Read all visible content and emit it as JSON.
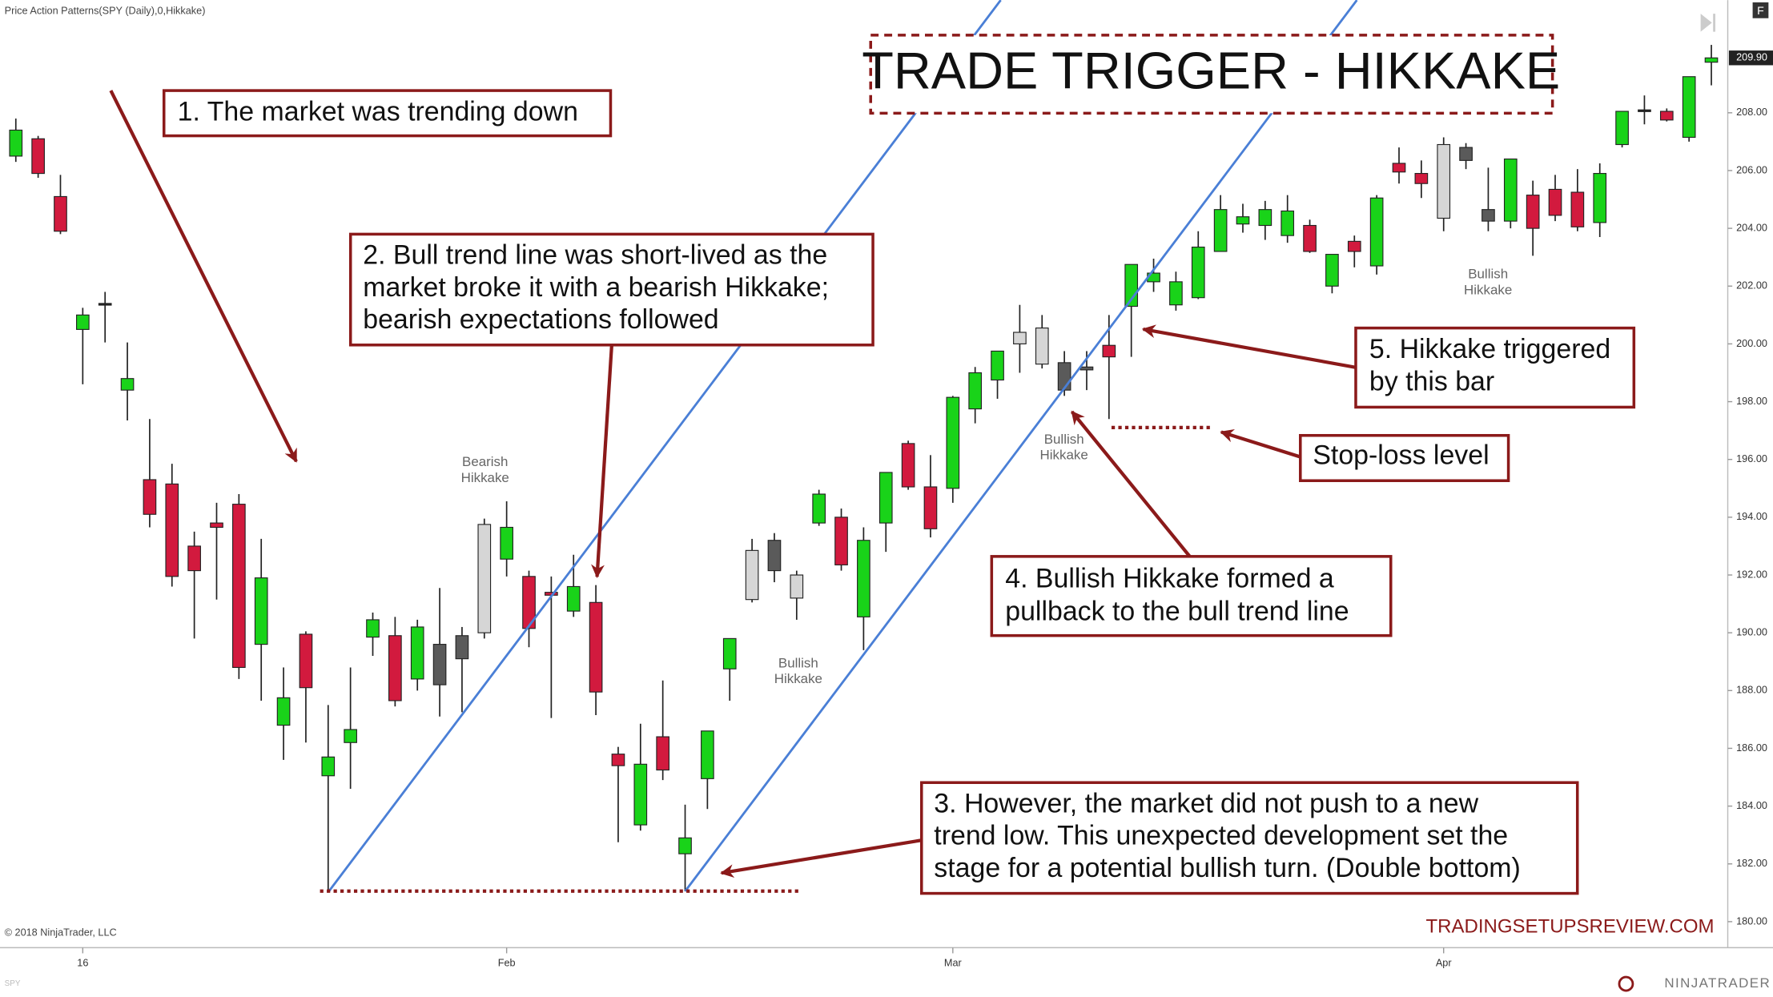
{
  "header": "Price Action Patterns(SPY (Daily),0,Hikkake)",
  "chart_data": {
    "type": "candlestick",
    "title": "TRADE TRIGGER - HIKKAKE",
    "categories": [
      null,
      null,
      null,
      "16",
      null,
      null,
      null,
      null,
      null,
      null,
      null,
      null,
      null,
      null,
      null,
      null,
      null,
      null,
      null,
      null,
      null,
      null,
      "Feb",
      null,
      null,
      null,
      null,
      null,
      null,
      null,
      null,
      null,
      null,
      null,
      null,
      null,
      null,
      null,
      null,
      null,
      null,
      null,
      "Mar",
      null,
      null,
      null,
      null,
      null,
      null,
      null,
      null,
      null,
      null,
      null,
      null,
      null,
      null,
      null,
      null,
      null,
      null,
      null,
      null,
      null,
      "Apr",
      null,
      null,
      null,
      null,
      null,
      null,
      null,
      null,
      null,
      null,
      null,
      null
    ],
    "open": [
      206.5,
      207.1,
      205.1,
      200.5,
      201.4,
      198.4,
      195.3,
      195.15,
      193.0,
      193.8,
      194.45,
      189.6,
      186.8,
      189.95,
      185.05,
      186.2,
      189.85,
      189.9,
      188.4,
      188.2,
      189.1,
      190.0,
      192.55,
      191.95,
      191.4,
      190.75,
      191.05,
      185.8,
      183.35,
      186.4,
      182.35,
      184.95,
      188.75,
      191.15,
      192.15,
      191.2,
      193.8,
      194.0,
      190.55,
      193.8,
      196.55,
      195.05,
      195.0,
      197.75,
      198.75,
      200.0,
      199.3,
      198.4,
      199.1,
      199.95,
      201.3,
      202.15,
      201.35,
      201.6,
      203.2,
      204.15,
      204.1,
      203.75,
      204.1,
      202.0,
      203.55,
      202.7,
      206.25,
      205.9,
      204.35,
      206.35,
      204.25,
      204.25,
      205.15,
      205.35,
      205.25,
      204.2,
      206.9,
      208.1,
      208.05,
      207.15,
      209.75
    ],
    "high": [
      207.8,
      207.2,
      205.85,
      201.25,
      201.8,
      200.05,
      197.4,
      195.85,
      193.5,
      194.5,
      194.8,
      193.25,
      188.8,
      190.05,
      187.5,
      188.8,
      190.7,
      190.55,
      190.45,
      191.55,
      190.2,
      193.95,
      194.55,
      192.15,
      191.95,
      192.7,
      191.65,
      186.05,
      186.85,
      188.35,
      184.05,
      186.6,
      189.8,
      193.25,
      193.45,
      192.15,
      194.95,
      194.3,
      193.65,
      195.55,
      196.65,
      196.15,
      198.2,
      199.2,
      199.75,
      201.35,
      201.0,
      199.75,
      199.75,
      201.0,
      202.75,
      202.95,
      202.5,
      203.9,
      205.15,
      204.85,
      204.95,
      205.15,
      204.3,
      203.1,
      203.75,
      205.15,
      206.8,
      206.35,
      207.15,
      206.95,
      206.1,
      206.4,
      205.65,
      205.85,
      206.05,
      206.25,
      208.05,
      208.6,
      208.15,
      209.25,
      210.35
    ],
    "low": [
      206.3,
      205.75,
      203.8,
      198.6,
      200.05,
      197.35,
      193.65,
      191.6,
      189.8,
      191.15,
      188.4,
      187.65,
      185.6,
      186.2,
      181.05,
      184.6,
      189.2,
      187.45,
      188.0,
      187.1,
      187.25,
      189.8,
      191.95,
      189.5,
      187.05,
      190.55,
      187.15,
      182.75,
      183.15,
      184.9,
      181.05,
      183.9,
      187.65,
      191.05,
      191.75,
      190.45,
      193.7,
      192.15,
      189.4,
      192.8,
      194.95,
      193.3,
      194.5,
      197.25,
      198.1,
      199.0,
      199.15,
      198.2,
      198.4,
      197.4,
      199.55,
      201.8,
      201.15,
      201.55,
      203.2,
      203.85,
      203.6,
      203.5,
      203.15,
      201.75,
      202.65,
      202.4,
      205.55,
      205.05,
      203.9,
      206.05,
      203.9,
      204.0,
      203.05,
      204.25,
      203.9,
      203.7,
      206.8,
      207.6,
      207.7,
      207.0,
      208.95
    ],
    "close": [
      207.4,
      205.9,
      203.9,
      201.0,
      201.4,
      198.8,
      194.1,
      191.95,
      192.15,
      193.65,
      188.8,
      191.9,
      187.75,
      188.1,
      185.7,
      186.65,
      190.45,
      187.65,
      190.2,
      189.6,
      189.9,
      193.75,
      193.65,
      190.15,
      191.3,
      191.6,
      187.95,
      185.4,
      185.45,
      185.25,
      182.9,
      186.6,
      189.8,
      192.85,
      193.2,
      192.0,
      194.8,
      192.35,
      193.2,
      195.55,
      195.05,
      193.6,
      198.15,
      199.0,
      199.75,
      200.4,
      200.55,
      199.35,
      199.2,
      199.55,
      202.75,
      202.45,
      202.15,
      203.35,
      204.65,
      204.4,
      204.65,
      204.6,
      203.2,
      203.1,
      203.2,
      205.05,
      205.95,
      205.55,
      206.9,
      206.8,
      204.65,
      206.4,
      204.0,
      204.45,
      204.05,
      205.9,
      208.05,
      208.1,
      207.75,
      209.25,
      209.9
    ],
    "colors": [
      "#19d319",
      "#d21a3e",
      "#d21a3e",
      "#19d319",
      "#222222",
      "#19d319",
      "#d21a3e",
      "#d21a3e",
      "#d21a3e",
      "#d21a3e",
      "#d21a3e",
      "#19d319",
      "#19d319",
      "#d21a3e",
      "#19d319",
      "#19d319",
      "#19d319",
      "#d21a3e",
      "#19d319",
      "#5a5a5a",
      "#5a5a5a",
      "#d6d6d6",
      "#19d319",
      "#d21a3e",
      "#d21a3e",
      "#19d319",
      "#d21a3e",
      "#d21a3e",
      "#19d319",
      "#d21a3e",
      "#19d319",
      "#19d319",
      "#19d319",
      "#d6d6d6",
      "#5a5a5a",
      "#d6d6d6",
      "#19d319",
      "#d21a3e",
      "#19d319",
      "#19d319",
      "#d21a3e",
      "#d21a3e",
      "#19d319",
      "#19d319",
      "#19d319",
      "#d6d6d6",
      "#d6d6d6",
      "#5a5a5a",
      "#5a5a5a",
      "#d21a3e",
      "#19d319",
      "#19d319",
      "#19d319",
      "#19d319",
      "#19d319",
      "#19d319",
      "#19d319",
      "#19d319",
      "#d21a3e",
      "#19d319",
      "#d21a3e",
      "#19d319",
      "#d21a3e",
      "#d21a3e",
      "#d6d6d6",
      "#5a5a5a",
      "#5a5a5a",
      "#19d319",
      "#d21a3e",
      "#d21a3e",
      "#d21a3e",
      "#19d319",
      "#19d319",
      "#222222",
      "#d21a3e",
      "#19d319",
      "#19d319"
    ],
    "ylim": [
      179.1,
      211.9
    ],
    "yticks": [
      {
        "value": 180,
        "label": "180.00"
      },
      {
        "value": 182,
        "label": "182.00"
      },
      {
        "value": 184,
        "label": "184.00"
      },
      {
        "value": 186,
        "label": "186.00"
      },
      {
        "value": 188,
        "label": "188.00"
      },
      {
        "value": 190,
        "label": "190.00"
      },
      {
        "value": 192,
        "label": "192.00"
      },
      {
        "value": 194,
        "label": "194.00"
      },
      {
        "value": 196,
        "label": "196.00"
      },
      {
        "value": 198,
        "label": "198.00"
      },
      {
        "value": 200,
        "label": "200.00"
      },
      {
        "value": 202,
        "label": "202.00"
      },
      {
        "value": 204,
        "label": "204.00"
      },
      {
        "value": 206,
        "label": "206.00"
      },
      {
        "value": 208,
        "label": "208.00"
      }
    ],
    "last_price": {
      "value": 209.9,
      "label": "209.90"
    }
  },
  "annotations": [
    {
      "lines": [
        "1. The market was trending down"
      ]
    },
    {
      "lines": [
        "2. Bull trend line was short-lived as the",
        "market broke it with a bearish Hikkake;",
        "bearish expectations followed"
      ]
    },
    {
      "lines": [
        "3. However, the market did not push to a new",
        "trend low. This unexpected development set the",
        "stage for a potential bullish turn. (Double bottom)"
      ]
    },
    {
      "lines": [
        "4. Bullish Hikkake formed a",
        "pullback to the bull trend line"
      ]
    },
    {
      "lines": [
        "5. Hikkake triggered",
        "by this bar"
      ]
    },
    {
      "lines": [
        "Stop-loss level"
      ]
    }
  ],
  "pattern_labels": [
    {
      "lines": [
        "Bearish",
        "Hikkake"
      ]
    },
    {
      "lines": [
        "Bullish",
        "Hikkake"
      ]
    },
    {
      "lines": [
        "Bullish",
        "Hikkake"
      ]
    },
    {
      "lines": [
        "Bullish",
        "Hikkake"
      ]
    }
  ],
  "copyright": "© 2018 NinjaTrader, LLC",
  "watermark": "TRADINGSETUPSREVIEW.COM",
  "brand": "NINJATRADER",
  "symbol": "SPY",
  "button": "F"
}
